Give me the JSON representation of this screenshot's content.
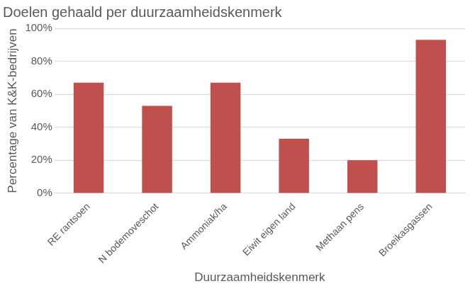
{
  "chart_data": {
    "type": "bar",
    "title": "Doelen gehaald per duurzaamheidskenmerk",
    "x_label": "Duurzaamheidskenmerk",
    "y_label": "Percentage van K&K-bedrijven",
    "categories": [
      "RE rantsoen",
      "N bodemoveschot",
      "Ammoniak/ha",
      "Eiwit eigen land",
      "Methaan pens",
      "Broeikasgassen"
    ],
    "values": [
      67,
      53,
      67,
      33,
      20,
      93
    ],
    "color": "#c0504d",
    "ylim": [
      0,
      100
    ],
    "yticks": [
      {
        "value": 0,
        "label": "0%"
      },
      {
        "value": 20,
        "label": "20%"
      },
      {
        "value": 40,
        "label": "40%"
      },
      {
        "value": 60,
        "label": "60%"
      },
      {
        "value": 80,
        "label": "80%"
      },
      {
        "value": 100,
        "label": "100%"
      }
    ],
    "grid": true
  }
}
